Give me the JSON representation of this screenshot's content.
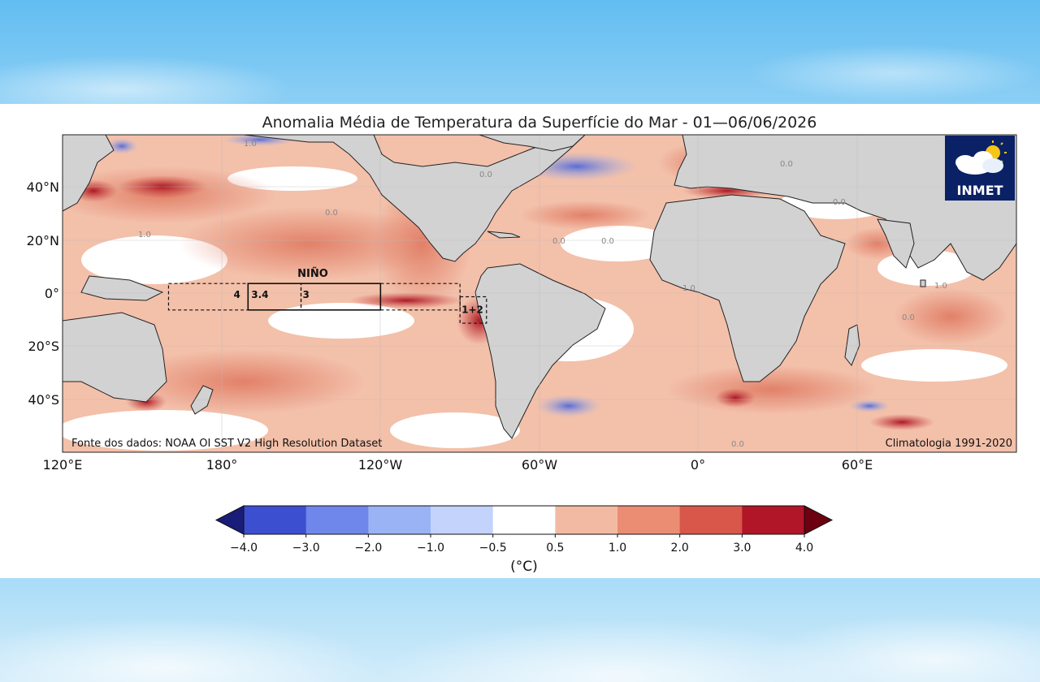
{
  "title": "Anomalia Média de Temperatura da Superfície do Mar - 01—06/06/2026",
  "source_note": "Fonte dos dados: NOAA OI SST V2 High Resolution Dataset",
  "climatology_note": "Climatologia 1991-2020",
  "logo": {
    "text": "INMET",
    "icon": "cloud-sun-icon",
    "bg_color": "#0a2166"
  },
  "lat_labels": [
    "40°N",
    "20°N",
    "0°",
    "20°S",
    "40°S"
  ],
  "lon_labels": [
    "120°E",
    "180°",
    "120°W",
    "60°W",
    "0°",
    "60°E"
  ],
  "nino": {
    "heading": "NIÑO",
    "regions": [
      {
        "name": "4",
        "lon": [
          160,
          210
        ],
        "lat": [
          -5,
          5
        ]
      },
      {
        "name": "3.4",
        "lon": [
          190,
          240
        ],
        "lat": [
          -5,
          5
        ]
      },
      {
        "name": "3",
        "lon": [
          210,
          270
        ],
        "lat": [
          -5,
          5
        ]
      },
      {
        "name": "1+2",
        "lon": [
          270,
          280
        ],
        "lat": [
          -10,
          0
        ]
      }
    ]
  },
  "colorbar": {
    "unit": "(°C)",
    "tick_labels": [
      "−4.0",
      "−3.0",
      "−2.0",
      "−1.0",
      "−0.5",
      "0.5",
      "1.0",
      "2.0",
      "3.0",
      "4.0"
    ],
    "colors": [
      "#2a2fa8",
      "#3c4fd0",
      "#6f87ea",
      "#9ab3f4",
      "#c3d3fb",
      "#ffffff",
      "#f3baa3",
      "#ea8d73",
      "#d8574a",
      "#b11528",
      "#6d0010"
    ]
  },
  "contour_labels": [
    "1.0",
    "0.0",
    "0.0",
    "1.0",
    "0.0",
    "0.0",
    "0.0",
    "1.0",
    "0.0",
    "0.0",
    "1.0",
    "0.0"
  ],
  "colors": {
    "land": "#d2d2d2",
    "warm": "#eda48a",
    "hot": "#d65545"
  }
}
